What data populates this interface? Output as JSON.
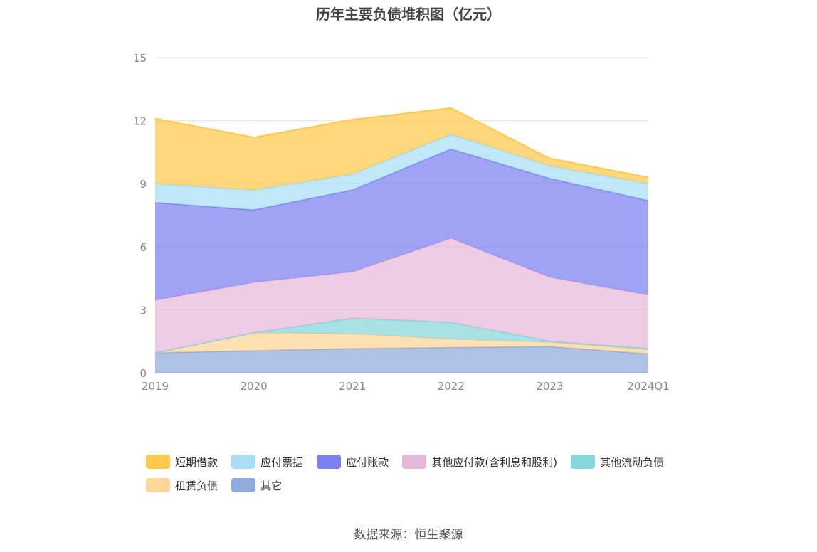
{
  "chart_data": {
    "type": "area",
    "stacked": true,
    "title": "历年主要负债堆积图（亿元）",
    "x": [
      "2019",
      "2020",
      "2021",
      "2022",
      "2023",
      "2024Q1"
    ],
    "yticks": [
      "0",
      "3",
      "6",
      "9",
      "12",
      "15"
    ],
    "ylim": [
      0,
      15
    ],
    "grid": true,
    "legend_position": "bottom",
    "series": [
      {
        "name": "其它",
        "color": "#8faadc",
        "values": [
          0.95,
          1.05,
          1.15,
          1.2,
          1.25,
          0.9
        ]
      },
      {
        "name": "租赁负债",
        "color": "#ffd699",
        "values": [
          0.0,
          0.85,
          0.7,
          0.4,
          0.2,
          0.2
        ]
      },
      {
        "name": "其他流动负债",
        "color": "#86d7d9",
        "values": [
          0.0,
          0.0,
          0.75,
          0.8,
          0.05,
          0.05
        ]
      },
      {
        "name": "其他应付款(含利息和股利)",
        "color": "#e8b8da",
        "values": [
          2.5,
          2.4,
          2.2,
          4.0,
          3.05,
          2.55
        ]
      },
      {
        "name": "应付账款",
        "color": "#7b7ff0",
        "values": [
          4.65,
          3.45,
          3.9,
          4.25,
          4.7,
          4.5
        ]
      },
      {
        "name": "应付票据",
        "color": "#a8dff7",
        "values": [
          0.9,
          0.95,
          0.75,
          0.7,
          0.6,
          0.8
        ]
      },
      {
        "name": "短期借款",
        "color": "#ffc94b",
        "values": [
          3.1,
          2.5,
          2.6,
          1.25,
          0.35,
          0.3
        ]
      }
    ]
  },
  "legend": {
    "items": [
      {
        "label": "短期借款",
        "color": "#ffc94b"
      },
      {
        "label": "应付票据",
        "color": "#a8dff7"
      },
      {
        "label": "应付账款",
        "color": "#7b7ff0"
      },
      {
        "label": "其他应付款(含利息和股利)",
        "color": "#e8b8da"
      },
      {
        "label": "其他流动负债",
        "color": "#86d7d9"
      },
      {
        "label": "租赁负债",
        "color": "#ffd699"
      },
      {
        "label": "其它",
        "color": "#8faadc"
      }
    ]
  },
  "source": "数据来源：恒生聚源"
}
